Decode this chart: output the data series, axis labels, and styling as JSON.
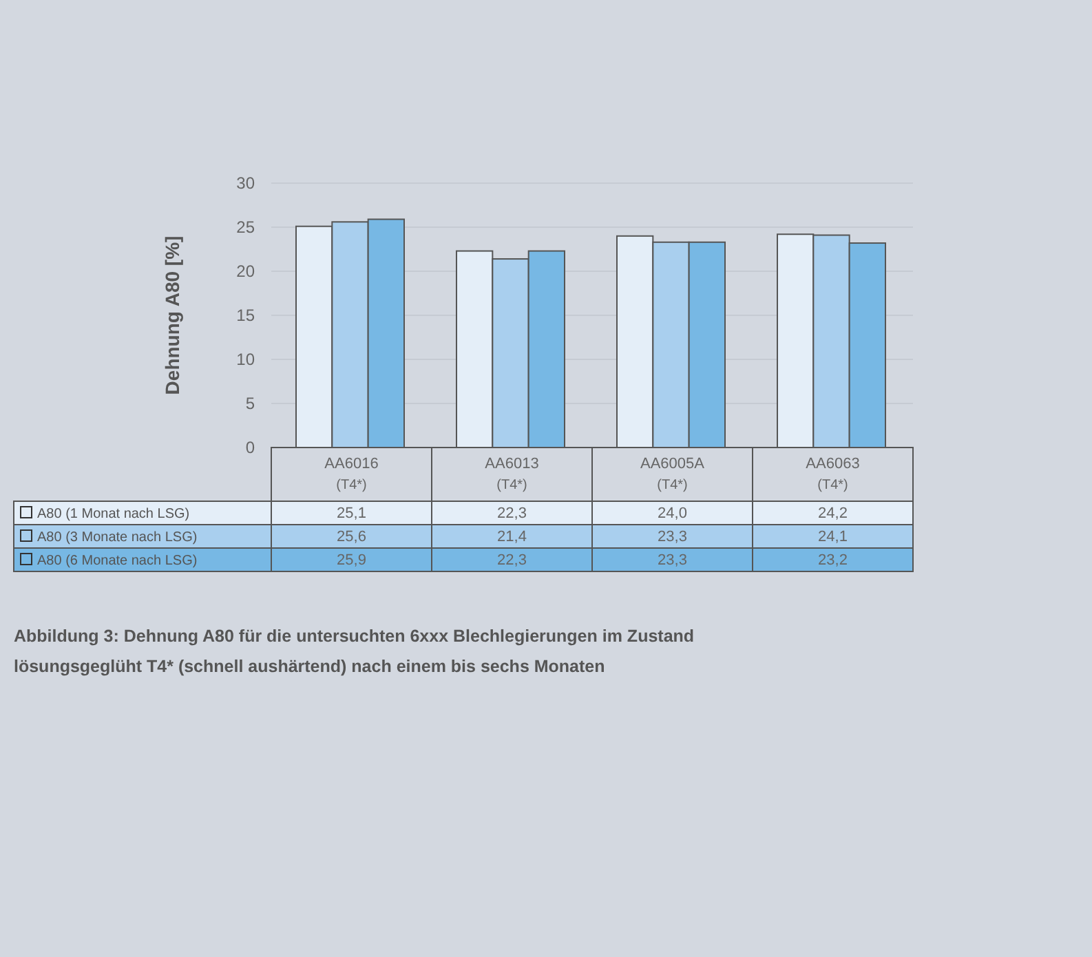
{
  "chart_data": {
    "type": "bar",
    "ylabel": "Dehnung A80 [%]",
    "categories": [
      "AA6016 (T4*)",
      "AA6013 (T4*)",
      "AA6005A (T4*)",
      "AA6063 (T4*)"
    ],
    "series": [
      {
        "name": "A80 (1 Monat nach LSG)",
        "color": "#e4eef8",
        "values": [
          25.1,
          22.3,
          24.0,
          24.2
        ],
        "value_labels": [
          "25,1",
          "22,3",
          "24,0",
          "24,2"
        ]
      },
      {
        "name": "A80 (3 Monate nach LSG)",
        "color": "#a9cfee",
        "values": [
          25.6,
          21.4,
          23.3,
          24.1
        ],
        "value_labels": [
          "25,6",
          "21,4",
          "23,3",
          "24,1"
        ]
      },
      {
        "name": "A80 (6 Monate nach LSG)",
        "color": "#77b8e4",
        "values": [
          25.9,
          22.3,
          23.3,
          23.2
        ],
        "value_labels": [
          "25,9",
          "22,3",
          "23,3",
          "23,2"
        ]
      }
    ],
    "ylim": [
      0,
      30
    ],
    "yticks": [
      0,
      5,
      10,
      15,
      20,
      25,
      30
    ],
    "grid": "y",
    "legend": "bottom left",
    "annotations": [
      "Abbildung 3: Dehnung A80 für die untersuchten 6xxx Blechlegierungen im Zustand lösungsgeglüht T4* (schnell aushärtend) nach einem bis sechs Monaten"
    ]
  }
}
